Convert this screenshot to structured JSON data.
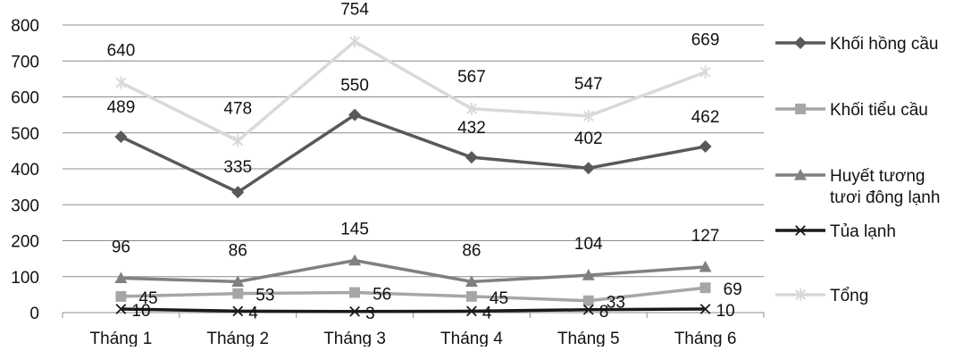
{
  "chart_data": {
    "type": "line",
    "categories": [
      "Tháng 1",
      "Tháng 2",
      "Tháng 3",
      "Tháng 4",
      "Tháng 5",
      "Tháng 6"
    ],
    "ylim": [
      0,
      800
    ],
    "yticks": [
      "0",
      "100",
      "200",
      "300",
      "400",
      "500",
      "600",
      "700",
      "800"
    ],
    "grid": true,
    "legend_position": "right",
    "series": [
      {
        "name": "Khối hồng cầu",
        "values": [
          489,
          335,
          550,
          432,
          402,
          462
        ],
        "color": "#595959",
        "marker": "diamond"
      },
      {
        "name": "Khối tiểu cầu",
        "values": [
          45,
          53,
          56,
          45,
          33,
          69
        ],
        "color": "#a6a6a6",
        "marker": "square"
      },
      {
        "name_lines": [
          "Huyết tương",
          "tươi đông lạnh"
        ],
        "values": [
          96,
          86,
          145,
          86,
          104,
          127
        ],
        "color": "#808080",
        "marker": "triangle"
      },
      {
        "name": "Tủa lạnh",
        "values": [
          10,
          4,
          3,
          4,
          8,
          10
        ],
        "color": "#1a1a1a",
        "marker": "x"
      },
      {
        "name": "Tổng",
        "values": [
          640,
          478,
          754,
          567,
          547,
          669
        ],
        "color": "#d9d9d9",
        "marker": "star"
      }
    ]
  }
}
